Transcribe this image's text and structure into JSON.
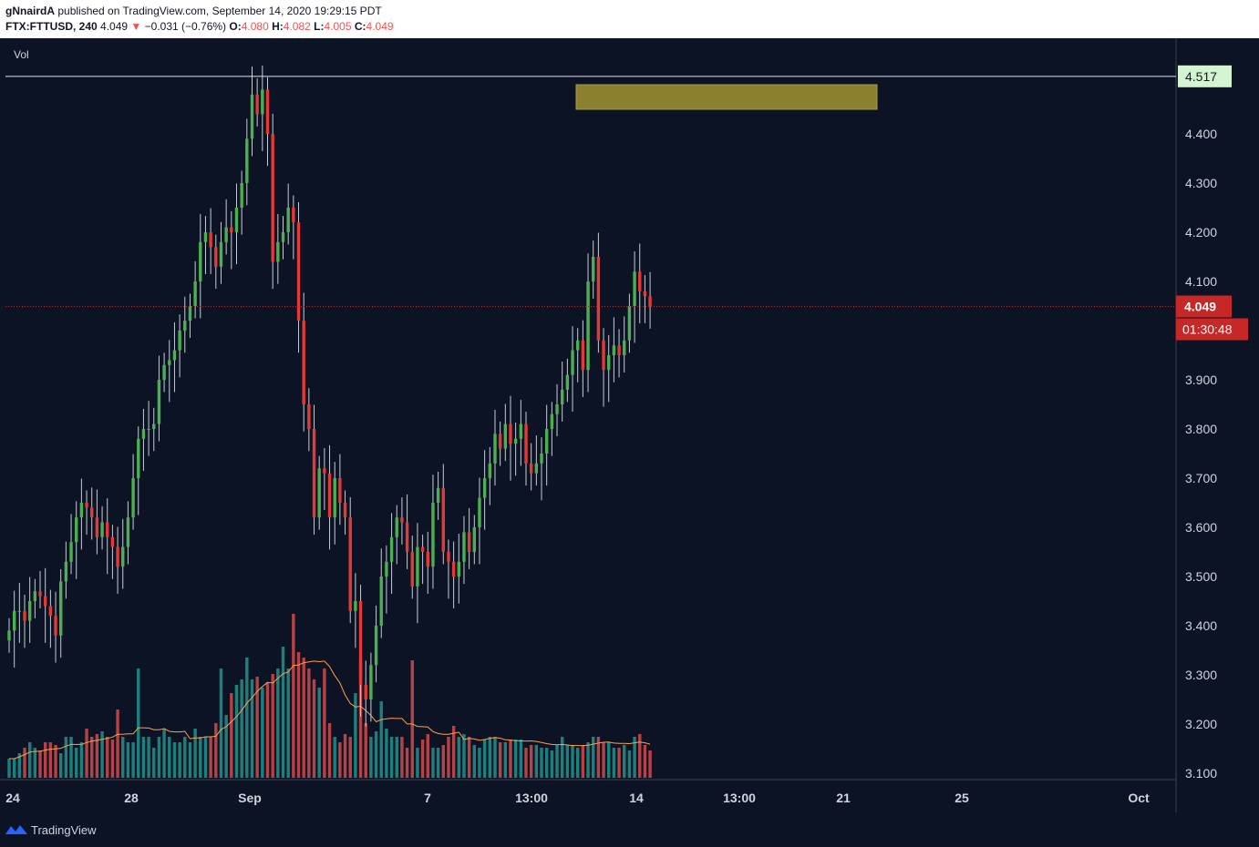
{
  "header": {
    "author": "gNnairdA",
    "published": "published on TradingView.com, September 14, 2020 19:29:15 PDT",
    "symbol": "FTX:FTTUSD, 240",
    "last": "4.049",
    "change": "−0.031 (−0.76%)",
    "o_label": "O:",
    "o": "4.080",
    "h_label": "H:",
    "h": "4.082",
    "l_label": "L:",
    "l": "4.005",
    "c_label": "C:",
    "c": "4.049"
  },
  "footer": {
    "brand": "TradingView"
  },
  "colors": {
    "background": "#0b1324",
    "up": "#4caf50",
    "down": "#e53935",
    "vol_up": "#26a69a",
    "vol_down": "#ef5350",
    "vol_ma": "#ff9f4a",
    "zone": "#8a8030",
    "price_label": "#c62828",
    "top_line_label": "#d4f3d0"
  },
  "chart_data": {
    "type": "candlestick",
    "indicator_label": "Vol",
    "y_ticks": [
      "4.400",
      "4.300",
      "4.200",
      "4.100",
      "3.900",
      "3.800",
      "3.700",
      "3.600",
      "3.500",
      "3.400",
      "3.300",
      "3.200",
      "3.100"
    ],
    "y_tick_values": [
      4.4,
      4.3,
      4.2,
      4.1,
      3.9,
      3.8,
      3.7,
      3.6,
      3.5,
      3.4,
      3.3,
      3.2,
      3.1
    ],
    "ylim": [
      3.1,
      4.517
    ],
    "x_ticks": [
      "24",
      "28",
      "Sep",
      "7",
      "13:00",
      "14",
      "13:00",
      "21",
      "25",
      "Oct"
    ],
    "x_tick_positions": [
      14,
      144,
      274,
      469,
      583,
      698,
      811,
      925,
      1055,
      1249
    ],
    "horizontal_line": {
      "value": 4.517,
      "label": "4.517"
    },
    "last_price": {
      "value": 4.049,
      "label": "4.049",
      "countdown": "01:30:48"
    },
    "zone": {
      "from_x": 632,
      "to_x": 962,
      "top": 4.5,
      "bottom": 4.45
    },
    "closes": [
      3.39,
      3.43,
      3.43,
      3.41,
      3.45,
      3.47,
      3.46,
      3.44,
      3.42,
      3.38,
      3.49,
      3.53,
      3.57,
      3.62,
      3.65,
      3.64,
      3.62,
      3.58,
      3.61,
      3.58,
      3.56,
      3.52,
      3.56,
      3.62,
      3.7,
      3.78,
      3.8,
      3.8,
      3.81,
      3.9,
      3.93,
      3.94,
      3.96,
      4.0,
      4.02,
      4.05,
      4.1,
      4.18,
      4.2,
      4.17,
      4.13,
      4.18,
      4.21,
      4.2,
      4.25,
      4.3,
      4.39,
      4.48,
      4.44,
      4.49,
      4.4,
      4.14,
      4.18,
      4.2,
      4.25,
      4.22,
      4.02,
      3.85,
      3.8,
      3.62,
      3.72,
      3.71,
      3.62,
      3.7,
      3.65,
      3.62,
      3.43,
      3.45,
      3.28,
      3.25,
      3.32,
      3.4,
      3.5,
      3.53,
      3.58,
      3.62,
      3.61,
      3.55,
      3.48,
      3.56,
      3.55,
      3.52,
      3.65,
      3.68,
      3.55,
      3.53,
      3.5,
      3.53,
      3.59,
      3.55,
      3.6,
      3.66,
      3.7,
      3.73,
      3.79,
      3.76,
      3.81,
      3.77,
      3.78,
      3.81,
      3.73,
      3.71,
      3.73,
      3.75,
      3.8,
      3.83,
      3.85,
      3.88,
      3.91,
      3.96,
      3.98,
      3.92,
      4.1,
      4.15,
      3.98,
      3.92,
      3.95,
      3.97,
      3.95,
      3.98,
      4.05,
      4.12,
      4.08,
      4.07,
      4.049
    ],
    "volumes": [
      0.14,
      0.14,
      0.18,
      0.22,
      0.26,
      0.22,
      0.2,
      0.26,
      0.26,
      0.24,
      0.18,
      0.3,
      0.3,
      0.22,
      0.26,
      0.36,
      0.3,
      0.32,
      0.34,
      0.3,
      0.28,
      0.5,
      0.3,
      0.26,
      0.26,
      0.8,
      0.3,
      0.3,
      0.22,
      0.3,
      0.36,
      0.3,
      0.26,
      0.26,
      0.3,
      0.26,
      0.36,
      0.3,
      0.3,
      0.3,
      0.4,
      0.8,
      0.46,
      0.62,
      0.68,
      0.72,
      0.88,
      0.72,
      0.74,
      0.66,
      0.7,
      0.76,
      0.8,
      0.96,
      0.8,
      1.2,
      0.92,
      0.88,
      0.8,
      0.72,
      0.66,
      0.8,
      0.4,
      0.3,
      0.26,
      0.32,
      0.3,
      0.62,
      0.86,
      0.4,
      0.3,
      0.34,
      0.56,
      0.36,
      0.3,
      0.3,
      0.3,
      0.22,
      0.86,
      0.22,
      0.28,
      0.32,
      0.22,
      0.22,
      0.24,
      0.3,
      0.38,
      0.3,
      0.32,
      0.3,
      0.24,
      0.22,
      0.28,
      0.3,
      0.3,
      0.26,
      0.26,
      0.28,
      0.28,
      0.28,
      0.22,
      0.24,
      0.24,
      0.22,
      0.22,
      0.2,
      0.24,
      0.3,
      0.24,
      0.24,
      0.22,
      0.24,
      0.26,
      0.3,
      0.3,
      0.26,
      0.26,
      0.22,
      0.22,
      0.24,
      0.2,
      0.3,
      0.32,
      0.24,
      0.2
    ]
  }
}
